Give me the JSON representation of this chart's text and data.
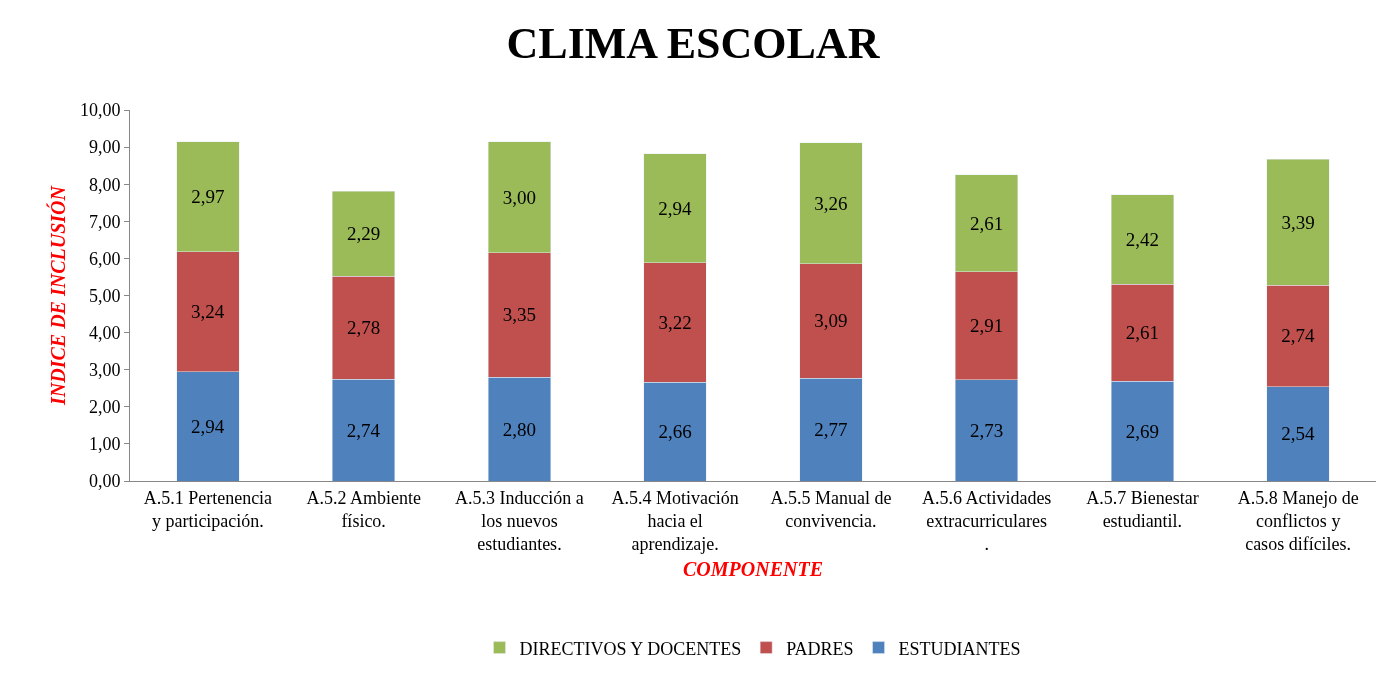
{
  "chart_data": {
    "type": "bar",
    "title": "CLIMA ESCOLAR",
    "xlabel": "COMPONENTE",
    "ylabel": "INDICE DE INCLUSIÓN",
    "stacked": true,
    "categories": [
      "A.5.1 Pertenencia y participación.",
      "A.5.2 Ambiente físico.",
      "A.5.3 Inducción a los nuevos estudiantes.",
      "A.5.4 Motivación hacia el aprendizaje.",
      "A.5.5 Manual de convivencia.",
      "A.5.6 Actividades extracurriculares.",
      "A.5.7 Bienestar estudiantil.",
      "A.5.8 Manejo de conflictos y casos difíciles."
    ],
    "series": [
      {
        "name": "ESTUDIANTES",
        "color": "#4f81bd",
        "values": [
          2.94,
          2.74,
          2.8,
          2.66,
          2.77,
          2.73,
          2.69,
          2.54
        ],
        "value_labels": [
          "2,94",
          "2,74",
          "2,80",
          "2,66",
          "2,77",
          "2,73",
          "2,69",
          "2,54"
        ]
      },
      {
        "name": "PADRES",
        "color": "#c0504d",
        "values": [
          3.24,
          2.78,
          3.35,
          3.22,
          3.09,
          2.91,
          2.61,
          2.74
        ],
        "value_labels": [
          "3,24",
          "2,78",
          "3,35",
          "3,22",
          "3,09",
          "2,91",
          "2,61",
          "2,74"
        ]
      },
      {
        "name": "DIRECTIVOS Y DOCENTES",
        "color": "#9bbb59",
        "values": [
          2.97,
          2.29,
          3.0,
          2.94,
          3.26,
          2.61,
          2.42,
          3.39
        ],
        "value_labels": [
          "2,97",
          "2,29",
          "3,00",
          "2,94",
          "3,26",
          "2,61",
          "2,42",
          "3,39"
        ]
      }
    ],
    "ylim": [
      0,
      10
    ],
    "yticks": [
      {
        "value": 0,
        "label": "0,00"
      },
      {
        "value": 1,
        "label": "1,00"
      },
      {
        "value": 2,
        "label": "2,00"
      },
      {
        "value": 3,
        "label": "3,00"
      },
      {
        "value": 4,
        "label": "4,00"
      },
      {
        "value": 5,
        "label": "5,00"
      },
      {
        "value": 6,
        "label": "6,00"
      },
      {
        "value": 7,
        "label": "7,00"
      },
      {
        "value": 8,
        "label": "8,00"
      },
      {
        "value": 9,
        "label": "9,00"
      },
      {
        "value": 10,
        "label": "10,00"
      }
    ],
    "grid": false,
    "legend": "bottom"
  }
}
